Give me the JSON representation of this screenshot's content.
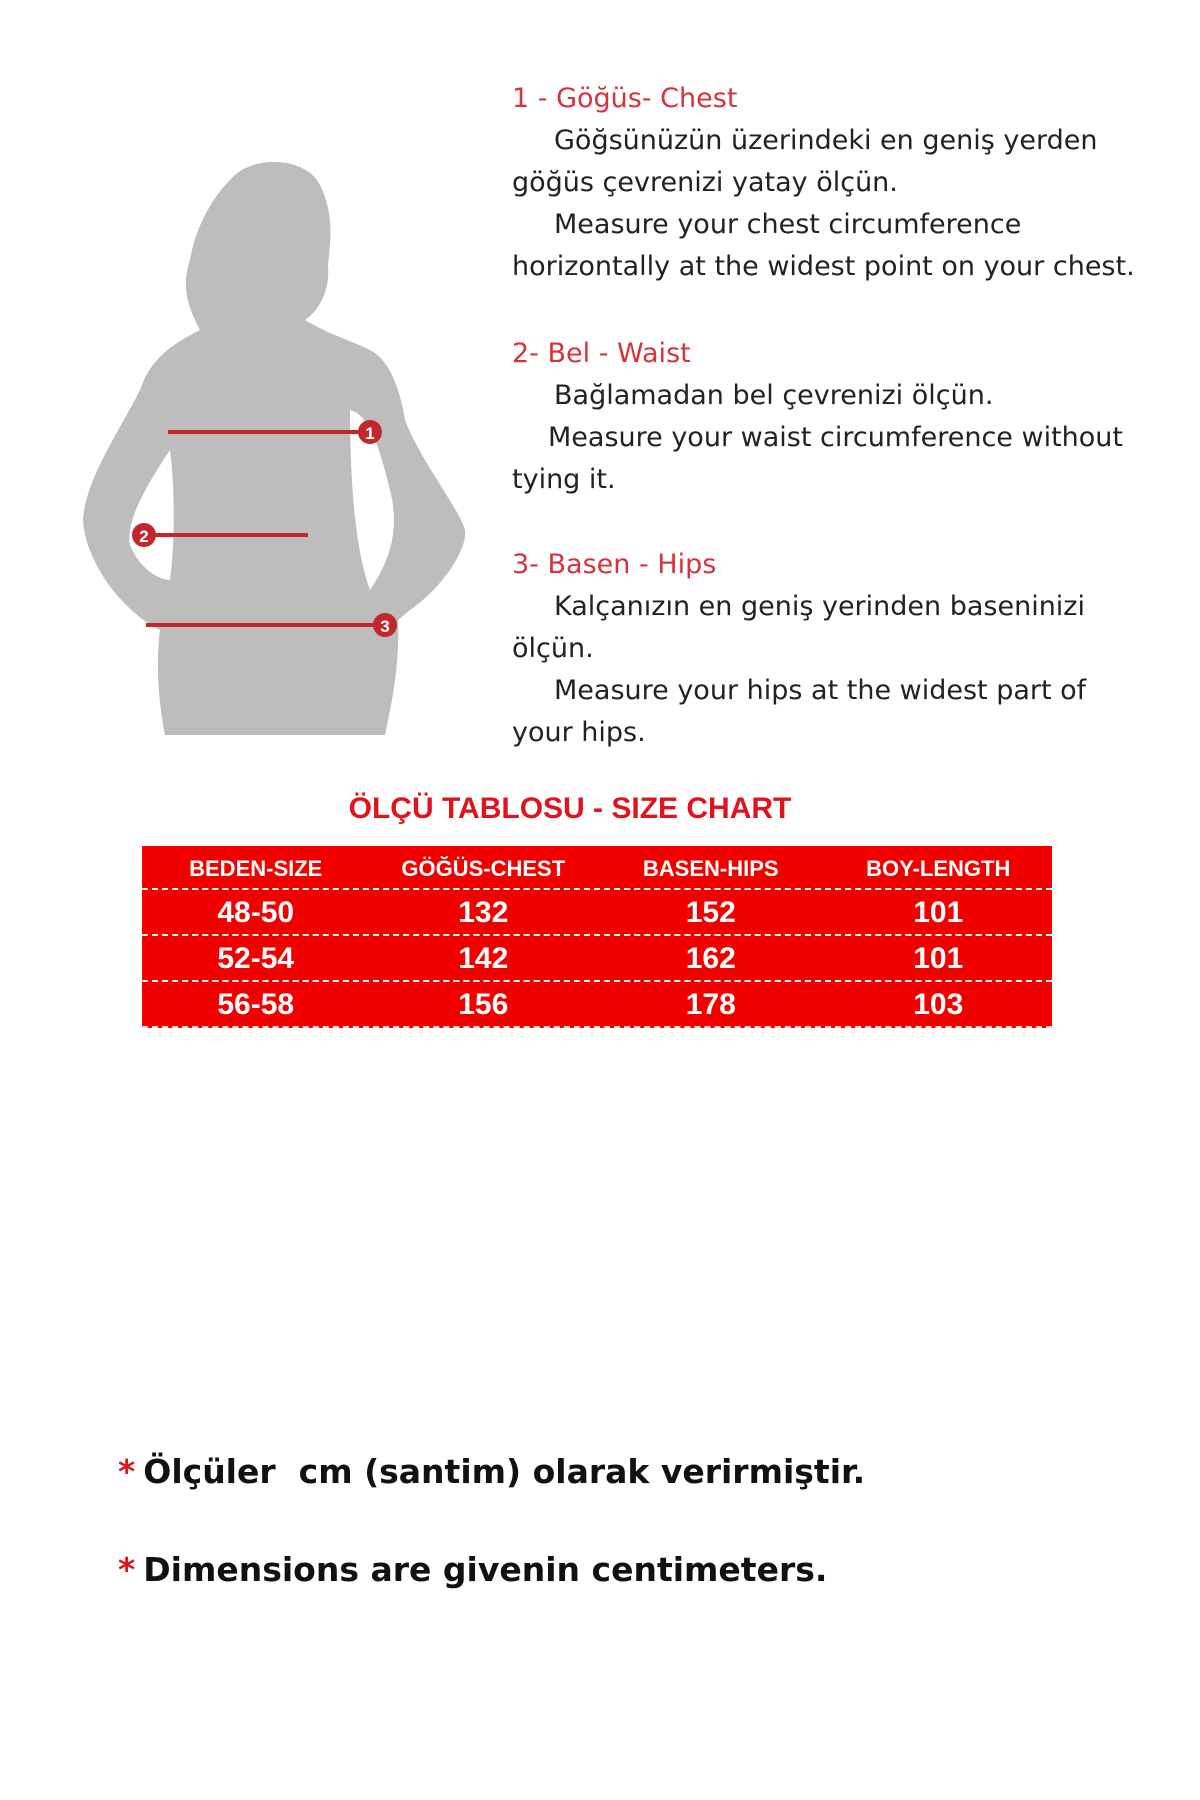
{
  "instructions": [
    {
      "heading": "1 - Göğüs- Chest",
      "lines": [
        {
          "text": "Göğsünüzün üzerindeki en geniş yerden",
          "indent": true
        },
        {
          "text": "göğüs çevrenizi yatay ölçün.",
          "indent": false
        },
        {
          "text": "Measure your chest circumference",
          "indent": true
        },
        {
          "text": "horizontally at the widest point on your chest.",
          "indent": false
        }
      ]
    },
    {
      "heading": "2- Bel - Waist",
      "lines": [
        {
          "text": "Bağlamadan bel çevrenizi ölçün.",
          "indent": true
        },
        {
          "text": "Measure your waist circumference without",
          "indent": true
        },
        {
          "text": "tying it.",
          "indent": false
        }
      ]
    },
    {
      "heading": "3- Basen - Hips",
      "lines": [
        {
          "text": "Kalçanızın en geniş yerinden baseninizi",
          "indent": true
        },
        {
          "text": "ölçün.",
          "indent": false
        },
        {
          "text": "Measure your hips at the widest part of",
          "indent": true
        },
        {
          "text": "your hips.",
          "indent": false
        }
      ]
    }
  ],
  "figure": {
    "markers": [
      "1",
      "2",
      "3"
    ],
    "line_color": "#c0282d",
    "silhouette_color": "#bdbdbd"
  },
  "size_chart": {
    "title": "ÖLÇÜ TABLOSU - SIZE CHART",
    "columns": [
      "BEDEN-SIZE",
      "GÖĞÜS-CHEST",
      "BASEN-HIPS",
      "BOY-LENGTH"
    ],
    "rows": [
      [
        "48-50",
        "132",
        "152",
        "101"
      ],
      [
        "52-54",
        "142",
        "162",
        "101"
      ],
      [
        "56-58",
        "156",
        "178",
        "103"
      ]
    ],
    "color": "#f20000"
  },
  "notes": [
    {
      "star": "*",
      "text": "Ölçüler  cm (santim) olarak verirmiştir."
    },
    {
      "star": "*",
      "text": "Dimensions are givenin centimeters."
    }
  ]
}
